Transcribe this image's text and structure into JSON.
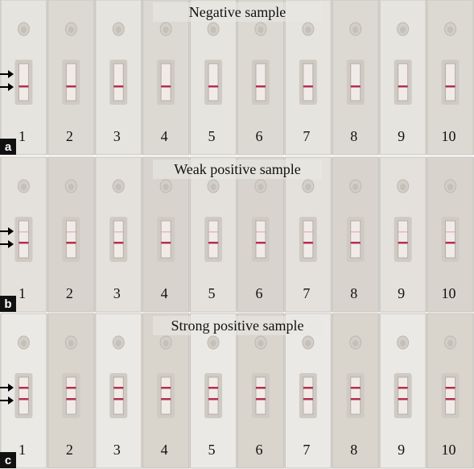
{
  "panels": [
    {
      "letter": "a",
      "title": "Negative sample",
      "numbers": [
        "1",
        "2",
        "3",
        "4",
        "5",
        "6",
        "7",
        "8",
        "9",
        "10"
      ]
    },
    {
      "letter": "b",
      "title": "Weak positive sample",
      "numbers": [
        "1",
        "2",
        "3",
        "4",
        "5",
        "6",
        "7",
        "8",
        "9",
        "10"
      ]
    },
    {
      "letter": "c",
      "title": "Strong positive sample",
      "numbers": [
        "1",
        "2",
        "3",
        "4",
        "5",
        "6",
        "7",
        "8",
        "9",
        "10"
      ]
    }
  ]
}
